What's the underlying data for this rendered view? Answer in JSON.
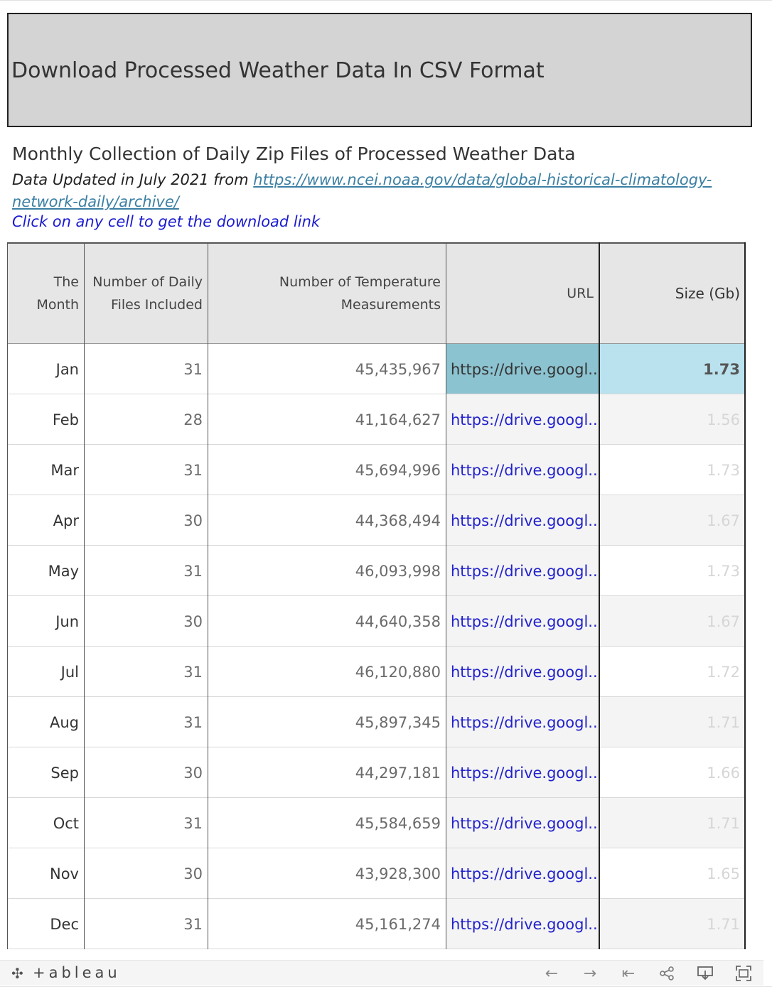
{
  "banner": {
    "title": "Download Processed Weather Data In CSV Format"
  },
  "subtitle": "Monthly Collection of Daily Zip Files of Processed Weather Data",
  "updated": {
    "prefix": "Data Updated in July 2021 from ",
    "link_line1": "https://www.ncei.noaa.gov/data/global-historical-climatology-",
    "link_line2": "network-daily/archive/"
  },
  "click_hint": "Click on any cell to get the download link",
  "table": {
    "headers": {
      "month": [
        "The",
        "Month"
      ],
      "files": [
        "Number of Daily",
        "Files Included"
      ],
      "measurements": [
        "Number of Temperature",
        "Measurements"
      ],
      "url": "URL",
      "size": "Size (Gb)"
    },
    "rows": [
      {
        "month": "Jan",
        "files": "31",
        "measurements": "45,435,967",
        "url": "https://drive.googl..",
        "size": "1.73"
      },
      {
        "month": "Feb",
        "files": "28",
        "measurements": "41,164,627",
        "url": "https://drive.googl..",
        "size": "1.56"
      },
      {
        "month": "Mar",
        "files": "31",
        "measurements": "45,694,996",
        "url": "https://drive.googl..",
        "size": "1.73"
      },
      {
        "month": "Apr",
        "files": "30",
        "measurements": "44,368,494",
        "url": "https://drive.googl..",
        "size": "1.67"
      },
      {
        "month": "May",
        "files": "31",
        "measurements": "46,093,998",
        "url": "https://drive.googl..",
        "size": "1.73"
      },
      {
        "month": "Jun",
        "files": "30",
        "measurements": "44,640,358",
        "url": "https://drive.googl..",
        "size": "1.67"
      },
      {
        "month": "Jul",
        "files": "31",
        "measurements": "46,120,880",
        "url": "https://drive.googl..",
        "size": "1.72"
      },
      {
        "month": "Aug",
        "files": "31",
        "measurements": "45,897,345",
        "url": "https://drive.googl..",
        "size": "1.71"
      },
      {
        "month": "Sep",
        "files": "30",
        "measurements": "44,297,181",
        "url": "https://drive.googl..",
        "size": "1.66"
      },
      {
        "month": "Oct",
        "files": "31",
        "measurements": "45,584,659",
        "url": "https://drive.googl..",
        "size": "1.71"
      },
      {
        "month": "Nov",
        "files": "30",
        "measurements": "43,928,300",
        "url": "https://drive.googl..",
        "size": "1.65"
      },
      {
        "month": "Dec",
        "files": "31",
        "measurements": "45,161,274",
        "url": "https://drive.googl..",
        "size": "1.71"
      }
    ],
    "selected_row": 0,
    "colors": {
      "selected_url_bg": "#8cc3d0",
      "selected_size_bg": "#b9e2ee",
      "link": "#2222cc"
    }
  },
  "footer": {
    "logo_text": "+ableau",
    "icons": [
      "undo-icon",
      "redo-icon",
      "revert-icon",
      "share-icon",
      "download-icon",
      "fullscreen-icon"
    ]
  }
}
